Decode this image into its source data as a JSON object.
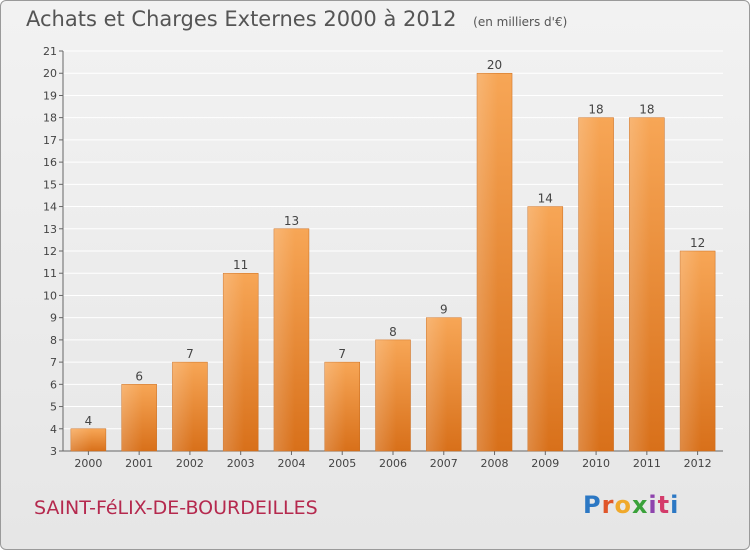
{
  "title": "Achats et Charges Externes 2000 à 2012",
  "subtitle": "(en milliers d'€)",
  "commune": "SAINT-FéLIX-DE-BOURDEILLES",
  "logo": [
    "P",
    "r",
    "o",
    "x",
    "i",
    "t",
    "i"
  ],
  "chart_data": {
    "type": "bar",
    "title": "Achats et Charges Externes 2000 à 2012",
    "subtitle": "(en milliers d'€)",
    "categories": [
      "2000",
      "2001",
      "2002",
      "2003",
      "2004",
      "2005",
      "2006",
      "2007",
      "2008",
      "2009",
      "2010",
      "2011",
      "2012"
    ],
    "values": [
      4,
      6,
      7,
      11,
      13,
      7,
      8,
      9,
      20,
      14,
      18,
      18,
      12
    ],
    "ylim": [
      3,
      21
    ],
    "yticks": [
      3,
      4,
      5,
      6,
      7,
      8,
      9,
      10,
      11,
      12,
      13,
      14,
      15,
      16,
      17,
      18,
      19,
      20,
      21
    ],
    "grid": true,
    "bar_color": "#f08a2c",
    "xlabel": "",
    "ylabel": ""
  }
}
